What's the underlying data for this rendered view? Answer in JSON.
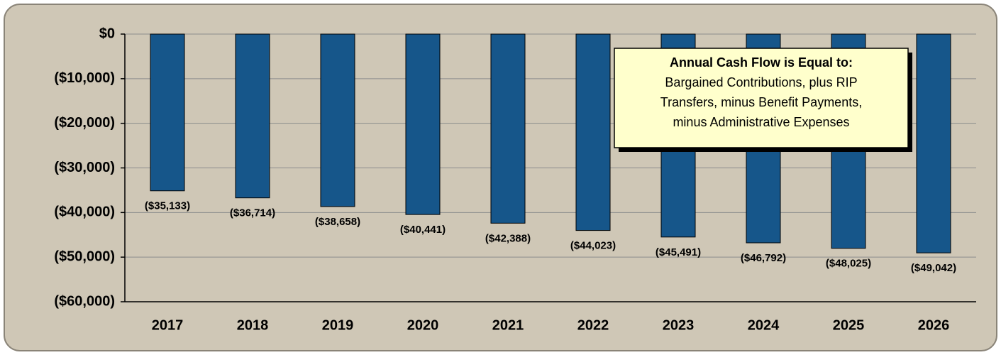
{
  "chart_data": {
    "type": "bar",
    "categories": [
      "2017",
      "2018",
      "2019",
      "2020",
      "2021",
      "2022",
      "2023",
      "2024",
      "2025",
      "2026"
    ],
    "values": [
      -35133,
      -36714,
      -38658,
      -40441,
      -42388,
      -44023,
      -45491,
      -46792,
      -48025,
      -49042
    ],
    "value_labels": [
      "($35,133)",
      "($36,714)",
      "($38,658)",
      "($40,441)",
      "($42,388)",
      "($44,023)",
      "($45,491)",
      "($46,792)",
      "($48,025)",
      "($49,042)"
    ],
    "color": "#16568a",
    "ylim": [
      -60000,
      0
    ],
    "yticks": [
      {
        "value": 0,
        "label": "$0"
      },
      {
        "value": -10000,
        "label": "($10,000)"
      },
      {
        "value": -20000,
        "label": "($20,000)"
      },
      {
        "value": -30000,
        "label": "($30,000)"
      },
      {
        "value": -40000,
        "label": "($40,000)"
      },
      {
        "value": -50000,
        "label": "($50,000)"
      },
      {
        "value": -60000,
        "label": "($60,000)"
      }
    ],
    "grid": true,
    "annotation": {
      "title": "Annual Cash Flow is Equal to:",
      "lines": [
        "Bargained Contributions, plus RIP",
        "Transfers, minus Benefit Payments,",
        "minus Administrative Expenses"
      ]
    }
  }
}
